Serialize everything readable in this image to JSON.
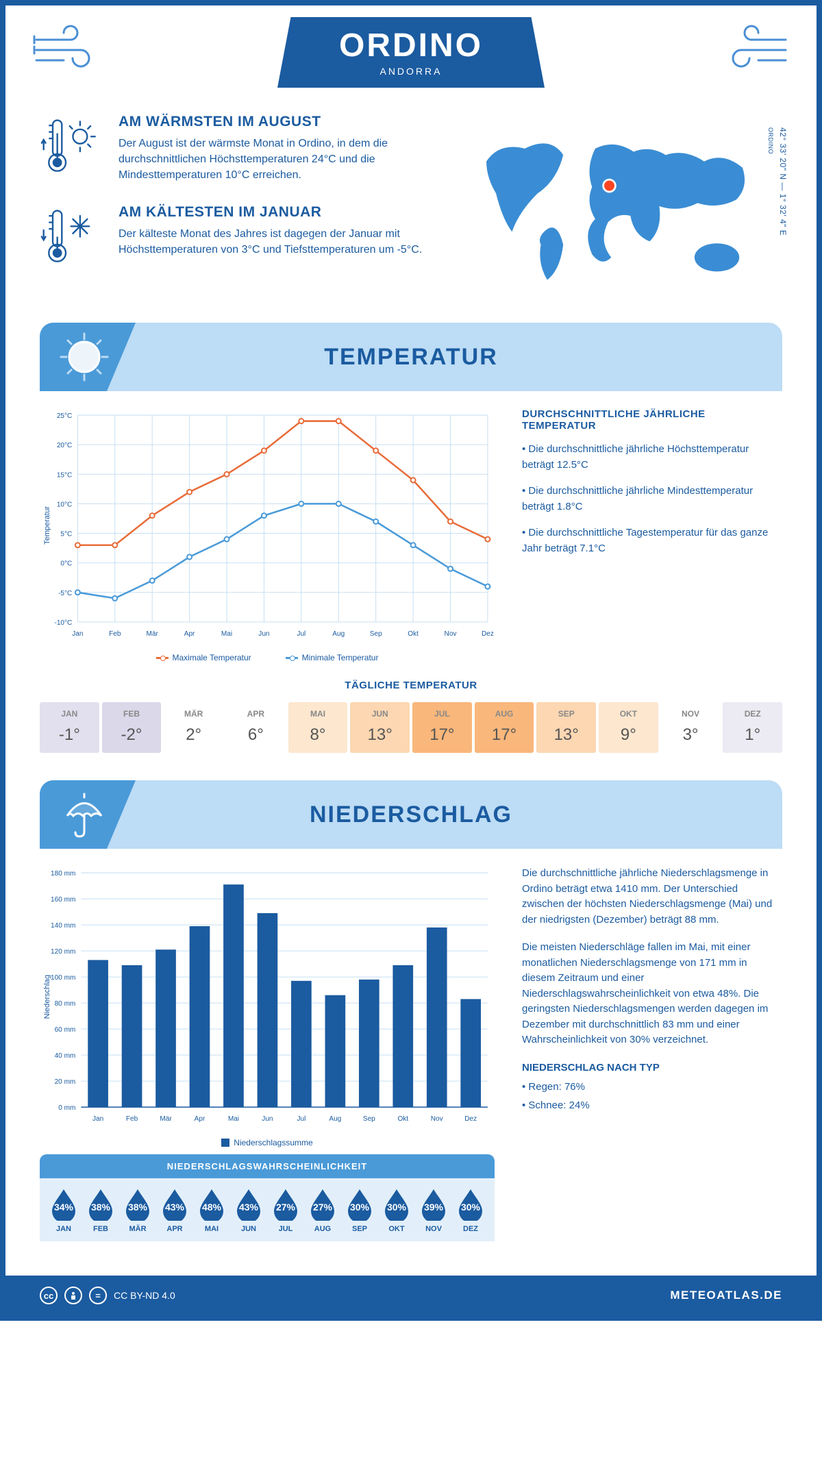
{
  "colors": {
    "brand": "#1b5ba0",
    "light_blue": "#bddcf5",
    "mid_blue": "#4a9ad8",
    "map_blue": "#3a8dd4",
    "max_line": "#e86c39",
    "min_line": "#4a9ad8",
    "bg": "#ffffff",
    "grid": "#c8dff2"
  },
  "header": {
    "title": "ORDINO",
    "subtitle": "ANDORRA"
  },
  "location": {
    "name": "ORDINO",
    "coords": "42° 33' 20\" N — 1° 32' 4\" E"
  },
  "facts": {
    "warmest": {
      "title": "AM WÄRMSTEN IM AUGUST",
      "text": "Der August ist der wärmste Monat in Ordino, in dem die durchschnittlichen Höchsttemperaturen 24°C und die Mindesttemperaturen 10°C erreichen."
    },
    "coldest": {
      "title": "AM KÄLTESTEN IM JANUAR",
      "text": "Der kälteste Monat des Jahres ist dagegen der Januar mit Höchsttemperaturen von 3°C und Tiefsttemperaturen um -5°C."
    }
  },
  "months": [
    "Jan",
    "Feb",
    "Mär",
    "Apr",
    "Mai",
    "Jun",
    "Jul",
    "Aug",
    "Sep",
    "Okt",
    "Nov",
    "Dez"
  ],
  "months_upper": [
    "JAN",
    "FEB",
    "MÄR",
    "APR",
    "MAI",
    "JUN",
    "JUL",
    "AUG",
    "SEP",
    "OKT",
    "NOV",
    "DEZ"
  ],
  "temperature": {
    "section_title": "TEMPERATUR",
    "chart": {
      "type": "line",
      "series_max": [
        3,
        3,
        8,
        12,
        15,
        19,
        24,
        24,
        19,
        14,
        7,
        4
      ],
      "series_min": [
        -5,
        -6,
        -3,
        1,
        4,
        8,
        10,
        10,
        7,
        3,
        -1,
        -4
      ],
      "y_label": "Temperatur",
      "ylim": [
        -10,
        25
      ],
      "ytick_step": 5,
      "max_color": "#e86c39",
      "min_color": "#4a9ad8",
      "legend_max": "Maximale Temperatur",
      "legend_min": "Minimale Temperatur"
    },
    "side": {
      "title": "DURCHSCHNITTLICHE JÄHRLICHE TEMPERATUR",
      "bullet1": "• Die durchschnittliche jährliche Höchsttemperatur beträgt 12.5°C",
      "bullet2": "• Die durchschnittliche jährliche Mindesttemperatur beträgt 1.8°C",
      "bullet3": "• Die durchschnittliche Tagestemperatur für das ganze Jahr beträgt 7.1°C"
    },
    "daily": {
      "title": "TÄGLICHE TEMPERATUR",
      "values": [
        "-1°",
        "-2°",
        "2°",
        "6°",
        "8°",
        "13°",
        "17°",
        "17°",
        "13°",
        "9°",
        "3°",
        "1°"
      ],
      "bg_colors": [
        "#e2e0ee",
        "#dad8e9",
        "#ffffff",
        "#ffffff",
        "#fde7cf",
        "#fcd7b2",
        "#f9b77b",
        "#f9b77b",
        "#fcd7b2",
        "#fde7cf",
        "#ffffff",
        "#ecebf3"
      ]
    }
  },
  "precipitation": {
    "section_title": "NIEDERSCHLAG",
    "chart": {
      "type": "bar",
      "values": [
        113,
        109,
        121,
        139,
        171,
        149,
        97,
        86,
        98,
        109,
        138,
        83
      ],
      "y_label": "Niederschlag",
      "ylim": [
        0,
        180
      ],
      "ytick_step": 20,
      "bar_color": "#1b5ba0",
      "legend": "Niederschlagssumme"
    },
    "side": {
      "para1": "Die durchschnittliche jährliche Niederschlagsmenge in Ordino beträgt etwa 1410 mm. Der Unterschied zwischen der höchsten Niederschlagsmenge (Mai) und der niedrigsten (Dezember) beträgt 88 mm.",
      "para2": "Die meisten Niederschläge fallen im Mai, mit einer monatlichen Niederschlagsmenge von 171 mm in diesem Zeitraum und einer Niederschlagswahrscheinlichkeit von etwa 48%. Die geringsten Niederschlagsmengen werden dagegen im Dezember mit durchschnittlich 83 mm und einer Wahrscheinlichkeit von 30% verzeichnet.",
      "type_title": "NIEDERSCHLAG NACH TYP",
      "type_rain": "• Regen: 76%",
      "type_snow": "• Schnee: 24%"
    },
    "probability": {
      "title": "NIEDERSCHLAGSWAHRSCHEINLICHKEIT",
      "values": [
        "34%",
        "38%",
        "38%",
        "43%",
        "48%",
        "43%",
        "27%",
        "27%",
        "30%",
        "30%",
        "39%",
        "30%"
      ]
    }
  },
  "footer": {
    "license": "CC BY-ND 4.0",
    "site": "METEOATLAS.DE"
  }
}
